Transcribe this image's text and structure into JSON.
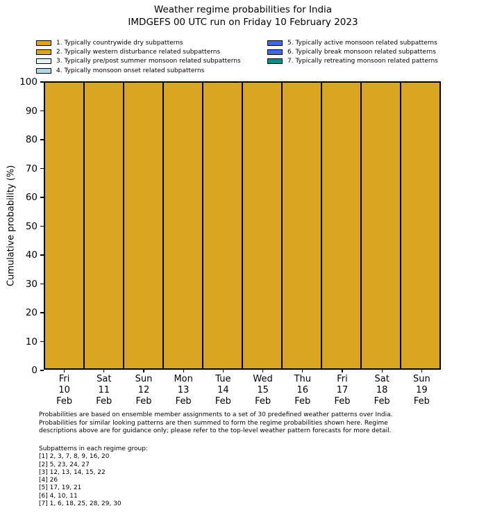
{
  "title": {
    "line1": "Weather regime probabilities for India",
    "line2": "IMDGEFS 00 UTC run on Friday 10 February 2023"
  },
  "chart_data": {
    "type": "bar",
    "stacked": true,
    "grid": false,
    "legend_position": "top, two columns",
    "ylabel": "Cumulative probability (%)",
    "ylim": [
      0,
      100
    ],
    "ytick_step": 10,
    "bar_edge_color": "#000000",
    "categories": [
      [
        "Fri",
        "10",
        "Feb"
      ],
      [
        "Sat",
        "11",
        "Feb"
      ],
      [
        "Sun",
        "12",
        "Feb"
      ],
      [
        "Mon",
        "13",
        "Feb"
      ],
      [
        "Tue",
        "14",
        "Feb"
      ],
      [
        "Wed",
        "15",
        "Feb"
      ],
      [
        "Thu",
        "16",
        "Feb"
      ],
      [
        "Fri",
        "17",
        "Feb"
      ],
      [
        "Sat",
        "18",
        "Feb"
      ],
      [
        "Sun",
        "19",
        "Feb"
      ]
    ],
    "series": [
      {
        "name": "1. Typically countrywide dry subpatterns",
        "color": "#DAA520",
        "hatch": false,
        "values": [
          100,
          100,
          100,
          100,
          100,
          100,
          100,
          100,
          100,
          100
        ]
      },
      {
        "name": "2. Typically western disturbance related subpatterns",
        "color": "#DAA520",
        "hatch": true,
        "values": [
          0,
          0,
          0,
          0,
          0,
          0,
          0,
          0,
          0,
          0
        ]
      },
      {
        "name": "3. Typically pre/post summer monsoon related subpatterns",
        "color": "#E3F2F7",
        "hatch": false,
        "values": [
          0,
          0,
          0,
          0,
          0,
          0,
          0,
          0,
          0,
          0
        ]
      },
      {
        "name": "4. Typically monsoon onset related subpatterns",
        "color": "#ADD8E6",
        "hatch": false,
        "values": [
          0,
          0,
          0,
          0,
          0,
          0,
          0,
          0,
          0,
          0
        ]
      },
      {
        "name": "5. Typically active monsoon related subpatterns",
        "color": "#4169E1",
        "hatch": false,
        "values": [
          0,
          0,
          0,
          0,
          0,
          0,
          0,
          0,
          0,
          0
        ]
      },
      {
        "name": "6. Typically break monsoon related subpatterns",
        "color": "#4169E1",
        "hatch": true,
        "values": [
          0,
          0,
          0,
          0,
          0,
          0,
          0,
          0,
          0,
          0
        ]
      },
      {
        "name": "7. Typically retreating monsoon related patterns",
        "color": "#0F8B8B",
        "hatch": false,
        "values": [
          0,
          0,
          0,
          0,
          0,
          0,
          0,
          0,
          0,
          0
        ]
      }
    ],
    "legend_columns": [
      [
        0,
        1,
        2,
        3
      ],
      [
        4,
        5,
        6
      ]
    ]
  },
  "footnote": {
    "lines": [
      "Probabilities are based on ensemble member assignments to a set of 30 predefined weather patterns over India.",
      "Probabilities for similar looking patterns are then summed to form the regime probabilities shown here. Regime",
      "descriptions above are for guidance only; please refer to the top-level weather pattern forecasts for more detail."
    ]
  },
  "subpatterns": {
    "header": "Subpatterns in each regime group:",
    "lines": [
      "[1] 2, 3, 7, 8, 9, 16, 20",
      "[2] 5, 23, 24, 27",
      "[3] 12, 13, 14, 15, 22",
      "[4] 26",
      "[5] 17, 19, 21",
      "[6] 4, 10, 11",
      "[7] 1, 6, 18, 25, 28, 29, 30"
    ]
  }
}
